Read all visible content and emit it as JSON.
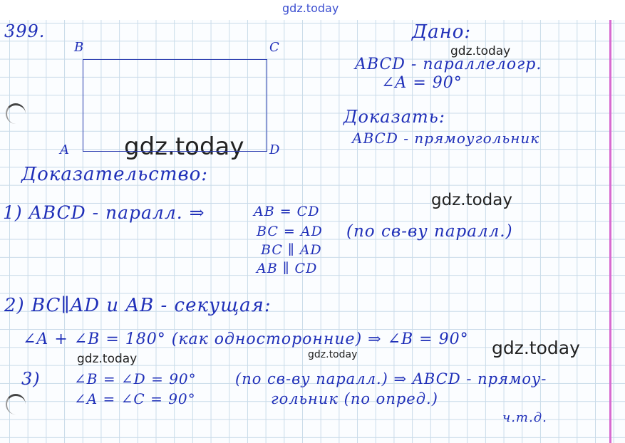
{
  "watermark": "gdz.today",
  "problem_number": "399.",
  "figure": {
    "labels": {
      "a": "A",
      "b": "B",
      "c": "C",
      "d": "D"
    }
  },
  "given": {
    "title": "Дано:",
    "line1": "ABCD - параллелогр.",
    "line2": "∠A = 90°"
  },
  "prove": {
    "title": "Доказать:",
    "line1": "ABCD - прямоугольник"
  },
  "proof": {
    "title": "Доказательство:",
    "step1": "1) ABCD - паралл. ⇒",
    "step1_eqs": [
      "AB = CD",
      "BC = AD",
      "BC ∥ AD",
      "AB ∥ CD"
    ],
    "step1_reason": "(по св-ву паралл.)",
    "step2": "2) BC∥AD и AB - секущая:",
    "step2_line": "∠A + ∠B = 180° (как односторонние) ⇒ ∠B = 90°",
    "step3_num": "3)",
    "step3_eqs": [
      "∠B = ∠D = 90°",
      "∠A = ∠C = 90°"
    ],
    "step3_reason": "(по св-ву паралл.) ⇒ ABCD - прямоу-",
    "step3_reason2": "гольник (по опред.)",
    "qed": "ч.т.д."
  },
  "colors": {
    "ink": "#1f2fb8",
    "grid": "#c9dbe9",
    "margin": "#d86ad0"
  }
}
